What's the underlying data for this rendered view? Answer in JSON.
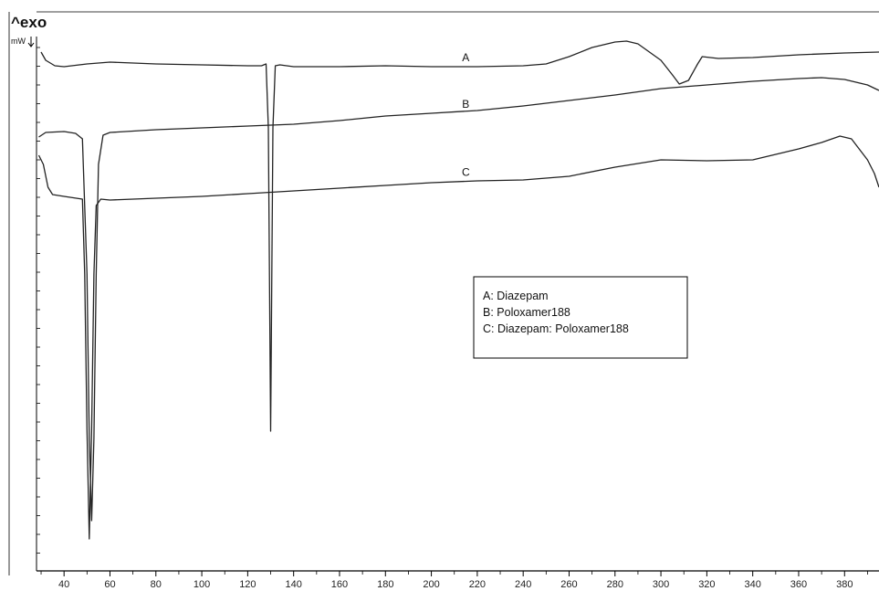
{
  "chart_data": {
    "type": "line",
    "ylabel_top": "^exo",
    "yunit": "mW",
    "xlim": [
      28,
      395
    ],
    "x_ticks": [
      40,
      60,
      80,
      100,
      120,
      140,
      160,
      180,
      200,
      220,
      240,
      260,
      280,
      300,
      320,
      340,
      360,
      380
    ],
    "legend": {
      "position": "center-right",
      "entries": [
        "A: Diazepam",
        "B: Poloxamer188",
        "C: Diazepam: Poloxamer188"
      ]
    },
    "series": [
      {
        "name": "A",
        "label_x": 215,
        "points": [
          [
            30,
            57
          ],
          [
            32,
            66
          ],
          [
            36,
            72
          ],
          [
            40,
            73
          ],
          [
            50,
            70
          ],
          [
            60,
            68
          ],
          [
            80,
            70
          ],
          [
            100,
            71
          ],
          [
            120,
            72
          ],
          [
            126,
            72
          ],
          [
            128,
            70
          ],
          [
            129,
            140
          ],
          [
            130,
            472
          ],
          [
            131,
            140
          ],
          [
            132,
            72
          ],
          [
            134,
            71
          ],
          [
            140,
            73
          ],
          [
            160,
            73
          ],
          [
            180,
            72
          ],
          [
            200,
            73
          ],
          [
            220,
            73
          ],
          [
            240,
            72
          ],
          [
            250,
            70
          ],
          [
            260,
            62
          ],
          [
            270,
            52
          ],
          [
            280,
            46
          ],
          [
            285,
            45
          ],
          [
            290,
            48
          ],
          [
            300,
            66
          ],
          [
            305,
            82
          ],
          [
            308,
            92
          ],
          [
            312,
            88
          ],
          [
            316,
            70
          ],
          [
            318,
            62
          ],
          [
            325,
            64
          ],
          [
            340,
            63
          ],
          [
            360,
            60
          ],
          [
            380,
            58
          ],
          [
            395,
            57
          ]
        ]
      },
      {
        "name": "B",
        "label_x": 215,
        "points": [
          [
            29,
            150
          ],
          [
            32,
            145
          ],
          [
            40,
            144
          ],
          [
            45,
            146
          ],
          [
            48,
            152
          ],
          [
            50,
            300
          ],
          [
            51,
            480
          ],
          [
            52,
            570
          ],
          [
            53,
            480
          ],
          [
            54,
            300
          ],
          [
            55,
            180
          ],
          [
            57,
            148
          ],
          [
            60,
            145
          ],
          [
            80,
            142
          ],
          [
            100,
            140
          ],
          [
            120,
            138
          ],
          [
            140,
            136
          ],
          [
            160,
            132
          ],
          [
            180,
            127
          ],
          [
            200,
            124
          ],
          [
            220,
            121
          ],
          [
            240,
            116
          ],
          [
            260,
            110
          ],
          [
            280,
            104
          ],
          [
            300,
            97
          ],
          [
            320,
            93
          ],
          [
            340,
            89
          ],
          [
            360,
            86
          ],
          [
            370,
            85
          ],
          [
            380,
            87
          ],
          [
            390,
            93
          ],
          [
            395,
            99
          ]
        ]
      },
      {
        "name": "C",
        "label_x": 215,
        "points": [
          [
            29,
            170
          ],
          [
            31,
            180
          ],
          [
            33,
            205
          ],
          [
            35,
            213
          ],
          [
            40,
            215
          ],
          [
            48,
            218
          ],
          [
            49,
            300
          ],
          [
            50,
            470
          ],
          [
            51,
            590
          ],
          [
            52,
            470
          ],
          [
            53,
            300
          ],
          [
            54,
            225
          ],
          [
            56,
            218
          ],
          [
            60,
            219
          ],
          [
            80,
            217
          ],
          [
            100,
            215
          ],
          [
            120,
            212
          ],
          [
            140,
            209
          ],
          [
            160,
            206
          ],
          [
            180,
            203
          ],
          [
            200,
            200
          ],
          [
            220,
            198
          ],
          [
            240,
            197
          ],
          [
            260,
            193
          ],
          [
            280,
            183
          ],
          [
            300,
            175
          ],
          [
            320,
            176
          ],
          [
            340,
            175
          ],
          [
            360,
            163
          ],
          [
            370,
            156
          ],
          [
            378,
            149
          ],
          [
            383,
            152
          ],
          [
            390,
            175
          ],
          [
            393,
            190
          ],
          [
            395,
            205
          ]
        ]
      }
    ]
  }
}
